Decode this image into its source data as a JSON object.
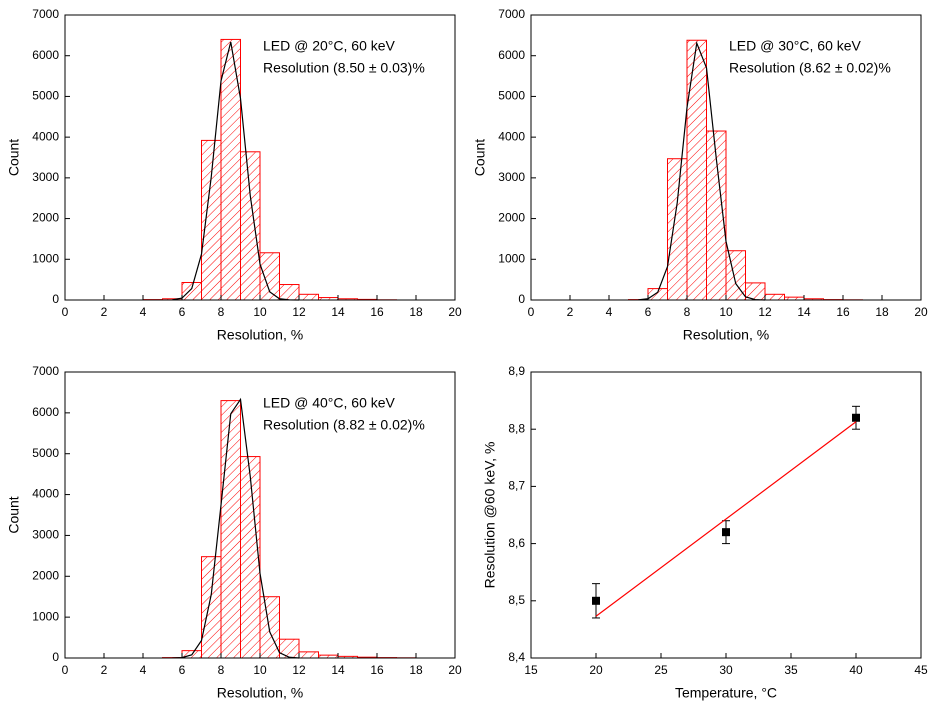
{
  "chart_data": [
    {
      "type": "histogram",
      "color": "#ff0000",
      "annotations": [
        "LED @ 20°C, 60 keV",
        "Resolution (8.50 ± 0.03)%"
      ],
      "xlabel": "Resolution, %",
      "ylabel": "Count",
      "bins": [
        0,
        1,
        2,
        3,
        4,
        5,
        6,
        7,
        8,
        9,
        10,
        11,
        12,
        13,
        14,
        15,
        16,
        17,
        18,
        19,
        20
      ],
      "values": [
        0,
        0,
        0,
        0,
        10,
        30,
        430,
        3920,
        6400,
        3640,
        1160,
        380,
        140,
        60,
        30,
        15,
        5,
        0,
        0,
        0
      ],
      "fit": {
        "color": "#000000",
        "x": [
          5.5,
          6,
          6.5,
          7,
          7.5,
          8,
          8.5,
          9,
          9.5,
          10,
          10.5,
          11,
          11.5,
          12
        ],
        "values": [
          5,
          46,
          281,
          1128,
          3023,
          5378,
          6337,
          4950,
          2566,
          882,
          201,
          30,
          3,
          0
        ]
      },
      "xlim": [
        0,
        20
      ],
      "xticks": [
        0,
        2,
        4,
        6,
        8,
        10,
        12,
        14,
        16,
        18,
        20
      ],
      "ylim": [
        0,
        7000
      ],
      "yticks": [
        0,
        1000,
        2000,
        3000,
        4000,
        5000,
        6000,
        7000
      ]
    },
    {
      "type": "histogram",
      "color": "#ff0000",
      "annotations": [
        "LED @ 30°C, 60 keV",
        "Resolution (8.62 ± 0.02)%"
      ],
      "xlabel": "Resolution, %",
      "ylabel": "Count",
      "bins": [
        0,
        1,
        2,
        3,
        4,
        5,
        6,
        7,
        8,
        9,
        10,
        11,
        12,
        13,
        14,
        15,
        16,
        17,
        18,
        19,
        20
      ],
      "values": [
        0,
        0,
        0,
        0,
        0,
        10,
        280,
        3470,
        6380,
        4150,
        1210,
        420,
        140,
        70,
        30,
        10,
        5,
        0,
        0,
        0
      ],
      "fit": {
        "color": "#000000",
        "x": [
          5.5,
          6,
          6.5,
          7,
          7.5,
          8,
          8.5,
          9,
          9.5,
          10,
          10.5,
          11,
          11.5,
          12
        ],
        "values": [
          3,
          30,
          191,
          821,
          2394,
          4726,
          6309,
          5700,
          3484,
          1440,
          403,
          77,
          10,
          0
        ]
      },
      "xlim": [
        0,
        20
      ],
      "xticks": [
        0,
        2,
        4,
        6,
        8,
        10,
        12,
        14,
        16,
        18,
        20
      ],
      "ylim": [
        0,
        7000
      ],
      "yticks": [
        0,
        1000,
        2000,
        3000,
        4000,
        5000,
        6000,
        7000
      ]
    },
    {
      "type": "histogram",
      "color": "#ff0000",
      "annotations": [
        "LED @ 40°C, 60 keV",
        "Resolution (8.82 ± 0.02)%"
      ],
      "xlabel": "Resolution, %",
      "ylabel": "Count",
      "bins": [
        0,
        1,
        2,
        3,
        4,
        5,
        6,
        7,
        8,
        9,
        10,
        11,
        12,
        13,
        14,
        15,
        16,
        17,
        18,
        19,
        20
      ],
      "values": [
        0,
        0,
        0,
        0,
        0,
        10,
        180,
        2480,
        6300,
        4930,
        1500,
        460,
        150,
        70,
        40,
        20,
        10,
        5,
        0,
        0
      ],
      "fit": {
        "color": "#000000",
        "x": [
          5.5,
          6,
          6.5,
          7,
          7.5,
          8,
          8.5,
          9,
          9.5,
          10,
          10.5,
          11,
          11.5,
          12
        ],
        "values": [
          1,
          9,
          78,
          428,
          1553,
          3742,
          5976,
          6330,
          4445,
          2072,
          639,
          131,
          18,
          0
        ]
      },
      "xlim": [
        0,
        20
      ],
      "xticks": [
        0,
        2,
        4,
        6,
        8,
        10,
        12,
        14,
        16,
        18,
        20
      ],
      "ylim": [
        0,
        7000
      ],
      "yticks": [
        0,
        1000,
        2000,
        3000,
        4000,
        5000,
        6000,
        7000
      ]
    },
    {
      "type": "scatter",
      "color": "#000000",
      "xlabel": "Temperature, °C",
      "ylabel": "Resolution @60 keV, %",
      "x": [
        20,
        30,
        40
      ],
      "values": [
        8.5,
        8.62,
        8.82
      ],
      "error": [
        0.03,
        0.02,
        0.02
      ],
      "fit": {
        "color": "#ff0000",
        "x": [
          20,
          40
        ],
        "values": [
          8.473,
          8.813
        ]
      },
      "xlim": [
        15,
        45
      ],
      "xticks": [
        15,
        20,
        25,
        30,
        35,
        40,
        45
      ],
      "ylim": [
        8.4,
        8.9
      ],
      "yticks": [
        {
          "value": 8.4,
          "label": "8,4"
        },
        {
          "value": 8.5,
          "label": "8,5"
        },
        {
          "value": 8.6,
          "label": "8,6"
        },
        {
          "value": 8.7,
          "label": "8,7"
        },
        {
          "value": 8.8,
          "label": "8,8"
        },
        {
          "value": 8.9,
          "label": "8,9"
        }
      ]
    }
  ]
}
